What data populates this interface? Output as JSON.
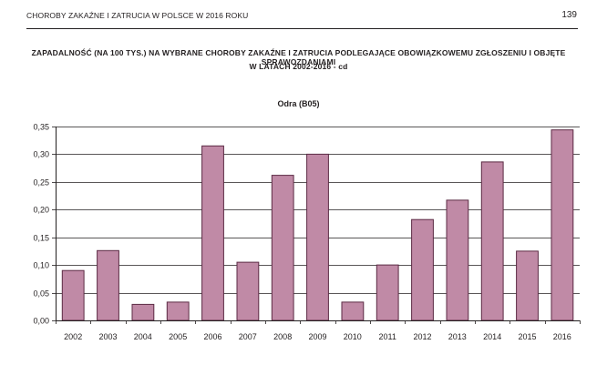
{
  "header": {
    "running_head": "CHOROBY ZAKAŹNE I ZATRUCIA W POLSCE W 2016 ROKU",
    "page_number": "139"
  },
  "title": {
    "line1": "ZAPADALNOŚĆ (NA 100 TYS.) NA WYBRANE CHOROBY ZAKAŹNE I ZATRUCIA PODLEGAJĄCE OBOWIĄZKOWEMU ZGŁOSZENIU I OBJĘTE SPRAWOZDANIAMI",
    "line2": "W LATACH 2002-2016 - cd"
  },
  "colors": {
    "bar_fill": "#c08aa6",
    "bar_stroke": "#5b2a44",
    "grid": "#231f20"
  },
  "chart_data": {
    "type": "bar",
    "title": "Odra (B05)",
    "xlabel": "",
    "ylabel": "",
    "categories": [
      "2002",
      "2003",
      "2004",
      "2005",
      "2006",
      "2007",
      "2008",
      "2009",
      "2010",
      "2011",
      "2012",
      "2013",
      "2014",
      "2015",
      "2016"
    ],
    "values": [
      0.09,
      0.126,
      0.029,
      0.033,
      0.315,
      0.105,
      0.262,
      0.3,
      0.033,
      0.1,
      0.182,
      0.217,
      0.286,
      0.125,
      0.344
    ],
    "ylim": [
      0,
      0.35
    ],
    "yticks": [
      "0,00",
      "0,05",
      "0,10",
      "0,15",
      "0,20",
      "0,25",
      "0,30",
      "0,35"
    ],
    "grid": true,
    "legend": "none"
  }
}
